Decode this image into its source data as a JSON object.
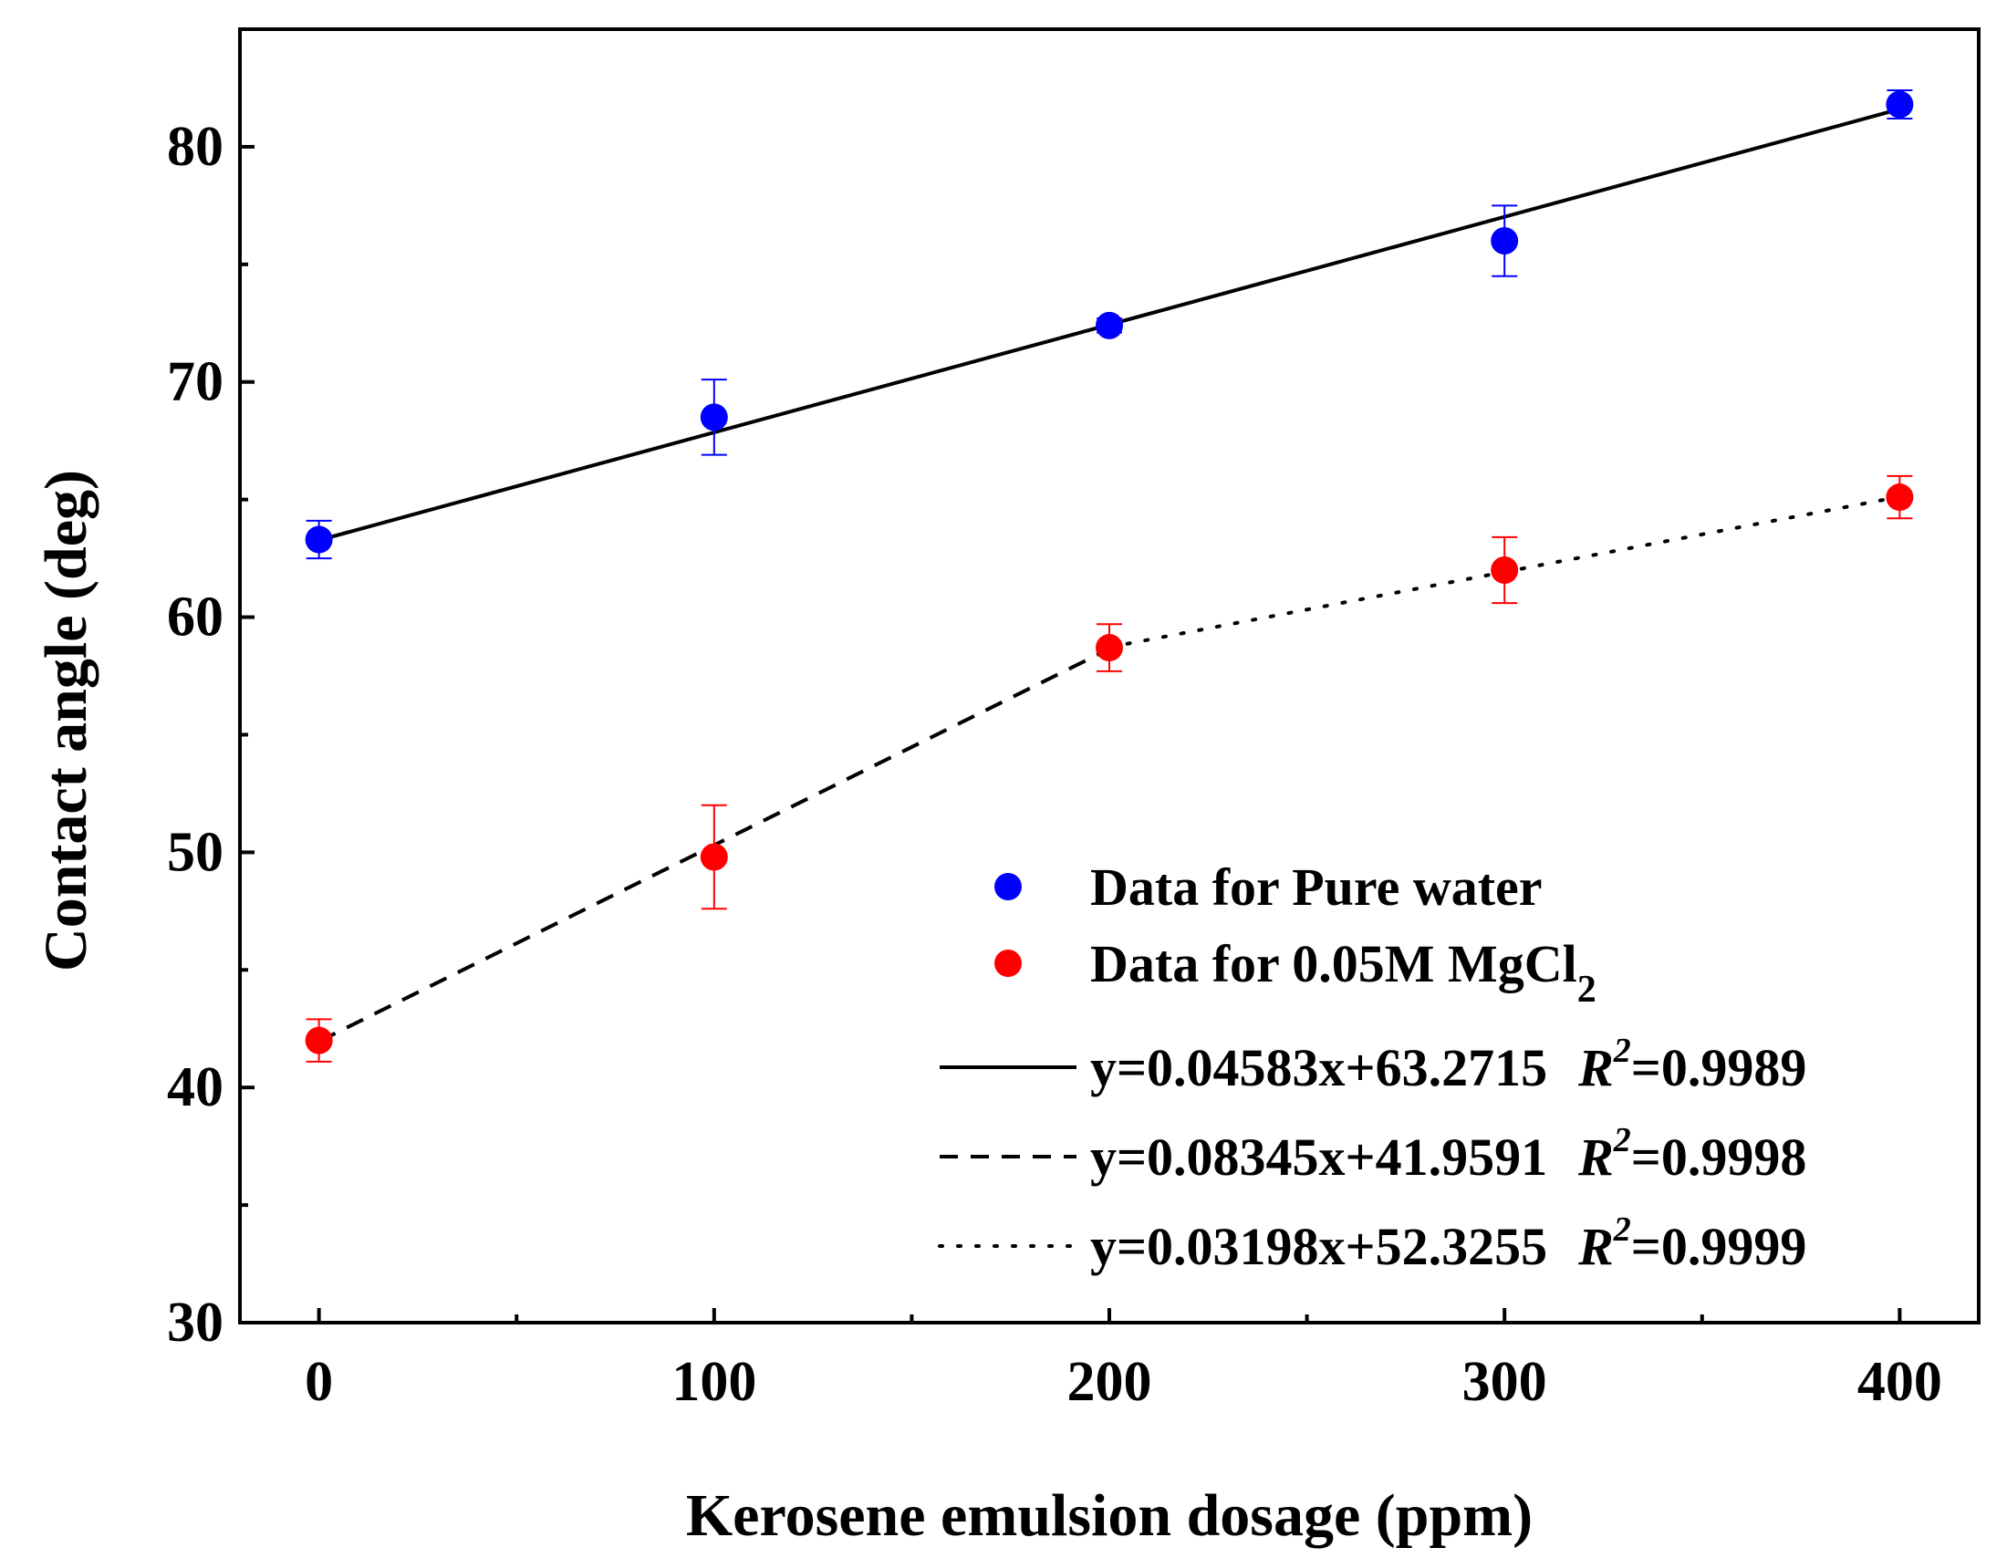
{
  "chart_data": {
    "type": "scatter",
    "title": "",
    "xlabel": "Kerosene emulsion dosage (ppm)",
    "ylabel": "Contact angle (deg)",
    "xlim": [
      -20,
      420
    ],
    "ylim": [
      30,
      85
    ],
    "x_ticks": [
      0,
      100,
      200,
      300,
      400
    ],
    "x_tick_labels": [
      "0",
      "100",
      "200",
      "300",
      "400"
    ],
    "x_minor_ticks": [
      50,
      150,
      250,
      350
    ],
    "y_ticks": [
      30,
      40,
      50,
      60,
      70,
      80
    ],
    "y_tick_labels": [
      "30",
      "40",
      "50",
      "60",
      "70",
      "80"
    ],
    "y_minor_ticks": [
      35,
      45,
      55,
      65,
      75
    ],
    "grid": false,
    "legend_position": "bottom-right",
    "series": [
      {
        "name": "Data for Pure water",
        "legend_label": "Data for Pure water",
        "color": "#0000ff",
        "x": [
          0,
          100,
          200,
          300,
          400
        ],
        "y": [
          63.3,
          68.5,
          72.4,
          76.0,
          81.8
        ],
        "error": [
          0.8,
          1.6,
          0.3,
          1.5,
          0.6
        ]
      },
      {
        "name": "Data for 0.05M MgCl2",
        "legend_label": "Data for 0.05M MgCl",
        "legend_subscript": "2",
        "color": "#ff0000",
        "x": [
          0,
          100,
          200,
          300,
          400
        ],
        "y": [
          42.0,
          49.8,
          58.7,
          62.0,
          65.1
        ],
        "error": [
          0.9,
          2.2,
          1.0,
          1.4,
          0.9
        ]
      }
    ],
    "fits": [
      {
        "style": "solid",
        "slope": 0.04583,
        "intercept": 63.2715,
        "x_range": [
          0,
          400
        ],
        "equation": "y=0.04583x+63.2715",
        "r2_label": "R",
        "r2_sup": "2",
        "r2_value": "=0.9989"
      },
      {
        "style": "dashed",
        "slope": 0.08345,
        "intercept": 41.9591,
        "x_range": [
          0,
          200
        ],
        "equation": "y=0.08345x+41.9591",
        "r2_label": "R",
        "r2_sup": "2",
        "r2_value": "=0.9998"
      },
      {
        "style": "dotted",
        "slope": 0.03198,
        "intercept": 52.3255,
        "x_range": [
          200,
          400
        ],
        "equation": "y=0.03198x+52.3255",
        "r2_label": "R",
        "r2_sup": "2",
        "r2_value": "=0.9999"
      }
    ]
  }
}
